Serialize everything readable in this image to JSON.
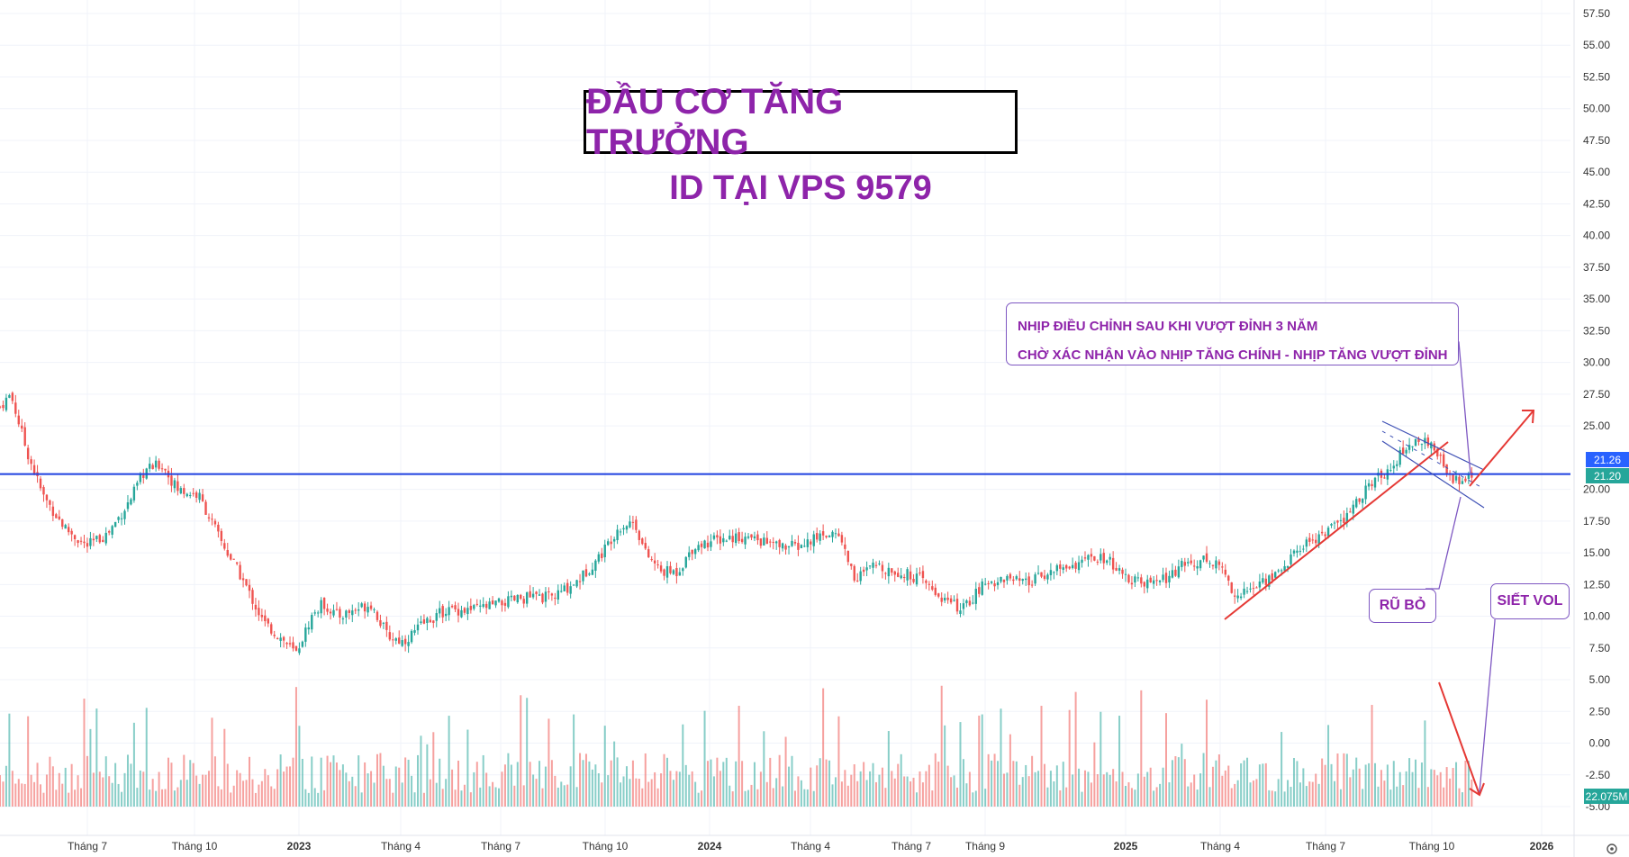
{
  "header": {
    "title": "ĐẦU CƠ TĂNG TRƯỞNG",
    "subtitle": "ID TẠI VPS 9579"
  },
  "notes": {
    "main_line1": "NHỊP ĐIỀU CHỈNH SAU KHI VƯỢT ĐỈNH 3 NĂM",
    "main_line2": "CHỜ XÁC NHẬN VÀO NHỊP TĂNG CHÍNH - NHỊP TĂNG VƯỢT ĐỈNH",
    "shakeout": "RŨ BỎ",
    "vol_squeeze": "SIẾT VOL"
  },
  "badges": {
    "price_1": "21.26",
    "price_2": "21.20",
    "volume": "22.075M"
  },
  "colors": {
    "up": "#26a69a",
    "down": "#ef5350",
    "accent": "#8e24aa",
    "level_line": "#1e40e0",
    "badge_blue": "#2962ff",
    "badge_teal": "#26a69a"
  },
  "chart_data": {
    "type": "candlestick",
    "y_axis": {
      "ticks": [
        "57.50",
        "55.00",
        "52.50",
        "50.00",
        "47.50",
        "45.00",
        "42.50",
        "40.00",
        "37.50",
        "35.00",
        "32.50",
        "30.00",
        "27.50",
        "25.00",
        "20.00",
        "17.50",
        "15.00",
        "12.50",
        "10.00",
        "7.50",
        "5.00",
        "2.50",
        "0.00",
        "-2.50",
        "-5.00"
      ],
      "range": [
        -5,
        57.5
      ]
    },
    "x_axis": {
      "ticks": [
        "Tháng 7",
        "Tháng 10",
        "2023",
        "Tháng 4",
        "Tháng 7",
        "Tháng 10",
        "2024",
        "Tháng 4",
        "Tháng 7",
        "Tháng 9",
        "2025",
        "Tháng 4",
        "Tháng 7",
        "Tháng 10",
        "2026"
      ]
    },
    "horizontal_level": 21.2,
    "price_path": [
      [
        0,
        26.5
      ],
      [
        0.02,
        27.5
      ],
      [
        0.05,
        23
      ],
      [
        0.08,
        19.5
      ],
      [
        0.12,
        17.0
      ],
      [
        0.16,
        15.5
      ],
      [
        0.2,
        16.5
      ],
      [
        0.24,
        19.0
      ],
      [
        0.27,
        21.5
      ],
      [
        0.3,
        22.0
      ],
      [
        0.33,
        20.0
      ],
      [
        0.37,
        19.5
      ],
      [
        0.41,
        16.0
      ],
      [
        0.45,
        13.0
      ],
      [
        0.49,
        9.5
      ],
      [
        0.53,
        8.0
      ],
      [
        0.55,
        7.0
      ],
      [
        0.58,
        10.0
      ],
      [
        0.6,
        11.0
      ],
      [
        0.63,
        10.0
      ],
      [
        0.66,
        10.5
      ],
      [
        0.69,
        11.0
      ],
      [
        0.72,
        8.5
      ],
      [
        0.75,
        8.0
      ],
      [
        0.79,
        9.5
      ],
      [
        0.83,
        10.5
      ],
      [
        0.88,
        10.5
      ],
      [
        0.93,
        11.0
      ],
      [
        0.98,
        11.5
      ],
      [
        1.03,
        11.5
      ],
      [
        1.08,
        13.0
      ],
      [
        1.12,
        15.0
      ],
      [
        1.15,
        17.0
      ],
      [
        1.18,
        17.5
      ],
      [
        1.2,
        15.0
      ],
      [
        1.23,
        13.5
      ],
      [
        1.26,
        13.5
      ],
      [
        1.29,
        15.5
      ],
      [
        1.33,
        16.0
      ],
      [
        1.37,
        16.3
      ],
      [
        1.41,
        16.0
      ],
      [
        1.45,
        15.5
      ],
      [
        1.49,
        15.5
      ],
      [
        1.53,
        16.5
      ],
      [
        1.56,
        16.5
      ],
      [
        1.59,
        13.0
      ],
      [
        1.63,
        14.0
      ],
      [
        1.67,
        13.5
      ],
      [
        1.71,
        13.0
      ],
      [
        1.75,
        11.5
      ],
      [
        1.79,
        10.5
      ],
      [
        1.83,
        12.5
      ],
      [
        1.87,
        13.0
      ],
      [
        1.91,
        12.5
      ],
      [
        1.95,
        13.5
      ],
      [
        1.99,
        14.0
      ],
      [
        2.03,
        14.5
      ],
      [
        2.06,
        14.5
      ],
      [
        2.09,
        13.0
      ],
      [
        2.13,
        12.5
      ],
      [
        2.17,
        13.0
      ],
      [
        2.2,
        14.0
      ],
      [
        2.24,
        14.5
      ],
      [
        2.27,
        14.0
      ],
      [
        2.3,
        11.5
      ],
      [
        2.34,
        12.5
      ],
      [
        2.38,
        13.5
      ],
      [
        2.42,
        15.5
      ],
      [
        2.46,
        16.5
      ],
      [
        2.5,
        17.5
      ],
      [
        2.54,
        20.0
      ],
      [
        2.58,
        21.5
      ],
      [
        2.61,
        23.0
      ],
      [
        2.64,
        24.0
      ],
      [
        2.67,
        23.0
      ],
      [
        2.7,
        21.0
      ],
      [
        2.72,
        20.5
      ],
      [
        2.74,
        21.26
      ]
    ],
    "annotations": [
      "NHỊP ĐIỀU CHỈNH SAU KHI VƯỢT ĐỈNH 3 NĂM",
      "CHỜ XÁC NHẬN VÀO NHỊP TĂNG CHÍNH - NHỊP TĂNG VƯỢT ĐỈNH",
      "RŨ BỎ",
      "SIẾT VOL"
    ],
    "last_price": 21.26,
    "last_volume": "22.075M"
  }
}
